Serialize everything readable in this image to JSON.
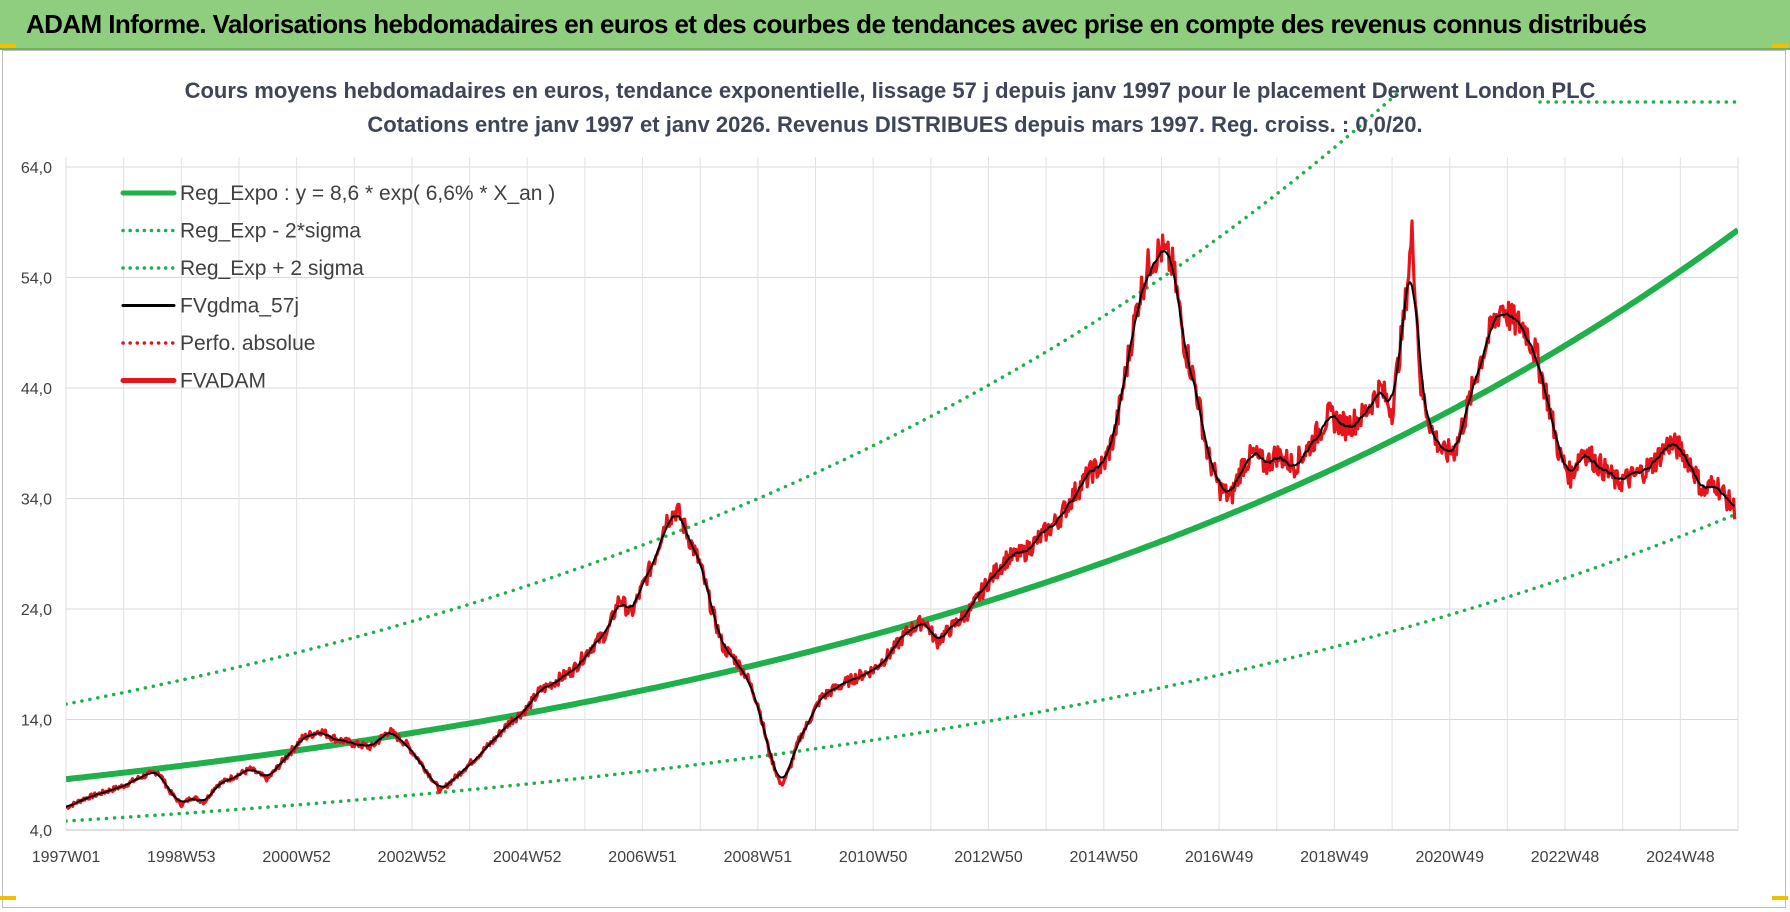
{
  "header": {
    "title": "ADAM Informe. Valorisations hebdomadaires en euros et des courbes de tendances avec prise en compte des revenus connus distribués"
  },
  "chart_data": {
    "type": "line",
    "title": [
      "Cours moyens hebdomadaires en euros, tendance exponentielle, lissage 57 j depuis janv 1997 pour le placement Derwent London PLC",
      "Cotations entre janv 1997 et janv 2026. Revenus DISTRIBUES depuis mars 1997.  Reg. croiss. : 0,0/20."
    ],
    "xlabel": "",
    "ylabel": "",
    "ylim": [
      4,
      64
    ],
    "xlim": [
      1997.0,
      2026.0
    ],
    "y_ticks": [
      "4,0",
      "14,0",
      "24,0",
      "34,0",
      "44,0",
      "54,0",
      "64,0"
    ],
    "y_tick_values": [
      4,
      14,
      24,
      34,
      44,
      54,
      64
    ],
    "x_ticks": [
      "1997W01",
      "1998W53",
      "2000W52",
      "2002W52",
      "2004W52",
      "2006W51",
      "2008W51",
      "2010W50",
      "2012W50",
      "2014W50",
      "2016W49",
      "2018W49",
      "2020W49",
      "2022W48",
      "2024W48"
    ],
    "x_tick_values": [
      1997.0,
      1999.0,
      2001.0,
      2003.0,
      2005.0,
      2007.0,
      2009.0,
      2011.0,
      2013.0,
      2015.0,
      2017.0,
      2019.0,
      2021.0,
      2023.0,
      2025.0
    ],
    "grid": true,
    "legend_position": "top-left",
    "regression": {
      "a": 8.6,
      "rate": 0.066,
      "sigma_factor_upper": 1.79,
      "sigma_factor_lower": 0.56
    },
    "series": [
      {
        "name": "Reg_Expo : y = 8,6 * exp( 6,6% *  X_an )",
        "color": "#1fb04b",
        "style": "solid-thick",
        "kind": "reg"
      },
      {
        "name": "Reg_Exp - 2*sigma",
        "color": "#1fb04b",
        "style": "dotted",
        "kind": "reg_low"
      },
      {
        "name": "Reg_Exp + 2 sigma",
        "color": "#1fb04b",
        "style": "dotted",
        "kind": "reg_high"
      },
      {
        "name": "FVgdma_57j",
        "color": "#000000",
        "style": "solid",
        "kind": "smooth"
      },
      {
        "name": "Perfo. absolue",
        "color": "#e8141c",
        "style": "dotted",
        "kind": "none"
      },
      {
        "name": "FVADAM",
        "color": "#e8141c",
        "style": "solid-thick",
        "kind": "price"
      }
    ],
    "price_points": [
      [
        1997.0,
        6.0
      ],
      [
        1997.3,
        6.8
      ],
      [
        1997.7,
        7.5
      ],
      [
        1998.0,
        8.0
      ],
      [
        1998.3,
        8.8
      ],
      [
        1998.6,
        9.3
      ],
      [
        1998.8,
        7.5
      ],
      [
        1999.0,
        6.3
      ],
      [
        1999.2,
        7.0
      ],
      [
        1999.4,
        6.5
      ],
      [
        1999.6,
        8.0
      ],
      [
        1999.9,
        8.8
      ],
      [
        2000.2,
        9.5
      ],
      [
        2000.5,
        8.6
      ],
      [
        2000.8,
        10.5
      ],
      [
        2001.1,
        12.3
      ],
      [
        2001.4,
        13.0
      ],
      [
        2001.7,
        12.2
      ],
      [
        2002.0,
        11.8
      ],
      [
        2002.3,
        11.5
      ],
      [
        2002.6,
        13.0
      ],
      [
        2002.9,
        11.8
      ],
      [
        2003.1,
        10.5
      ],
      [
        2003.3,
        9.0
      ],
      [
        2003.5,
        7.5
      ],
      [
        2003.8,
        9.0
      ],
      [
        2004.1,
        10.5
      ],
      [
        2004.4,
        12.0
      ],
      [
        2004.7,
        13.8
      ],
      [
        2005.0,
        15.0
      ],
      [
        2005.2,
        16.5
      ],
      [
        2005.5,
        17.5
      ],
      [
        2005.8,
        18.5
      ],
      [
        2006.1,
        20.5
      ],
      [
        2006.4,
        22.0
      ],
      [
        2006.6,
        25.0
      ],
      [
        2006.8,
        23.5
      ],
      [
        2007.0,
        26.0
      ],
      [
        2007.2,
        28.5
      ],
      [
        2007.4,
        32.0
      ],
      [
        2007.6,
        33.0
      ],
      [
        2007.8,
        30.5
      ],
      [
        2008.0,
        28.0
      ],
      [
        2008.2,
        24.0
      ],
      [
        2008.4,
        20.5
      ],
      [
        2008.6,
        19.5
      ],
      [
        2008.8,
        18.0
      ],
      [
        2009.0,
        15.5
      ],
      [
        2009.2,
        11.0
      ],
      [
        2009.4,
        8.0
      ],
      [
        2009.55,
        9.5
      ],
      [
        2009.7,
        12.0
      ],
      [
        2009.9,
        14.0
      ],
      [
        2010.1,
        16.0
      ],
      [
        2010.4,
        17.0
      ],
      [
        2010.7,
        17.8
      ],
      [
        2011.0,
        18.5
      ],
      [
        2011.3,
        20.0
      ],
      [
        2011.6,
        22.0
      ],
      [
        2011.9,
        23.0
      ],
      [
        2012.1,
        21.0
      ],
      [
        2012.4,
        22.5
      ],
      [
        2012.7,
        24.0
      ],
      [
        2013.0,
        26.5
      ],
      [
        2013.3,
        28.5
      ],
      [
        2013.6,
        29.0
      ],
      [
        2013.9,
        30.5
      ],
      [
        2014.2,
        32.0
      ],
      [
        2014.5,
        34.5
      ],
      [
        2014.8,
        36.5
      ],
      [
        2015.0,
        37.0
      ],
      [
        2015.2,
        40.0
      ],
      [
        2015.4,
        46.0
      ],
      [
        2015.6,
        52.0
      ],
      [
        2015.8,
        55.5
      ],
      [
        2016.0,
        56.5
      ],
      [
        2016.2,
        55.0
      ],
      [
        2016.4,
        48.0
      ],
      [
        2016.6,
        44.0
      ],
      [
        2016.8,
        38.0
      ],
      [
        2017.0,
        35.0
      ],
      [
        2017.2,
        34.0
      ],
      [
        2017.4,
        37.0
      ],
      [
        2017.6,
        38.0
      ],
      [
        2017.8,
        37.0
      ],
      [
        2018.0,
        38.0
      ],
      [
        2018.3,
        37.0
      ],
      [
        2018.6,
        39.0
      ],
      [
        2018.9,
        41.5
      ],
      [
        2019.2,
        40.5
      ],
      [
        2019.5,
        41.5
      ],
      [
        2019.8,
        44.0
      ],
      [
        2020.0,
        42.0
      ],
      [
        2020.2,
        50.0
      ],
      [
        2020.35,
        58.0
      ],
      [
        2020.5,
        44.0
      ],
      [
        2020.7,
        40.0
      ],
      [
        2020.9,
        38.0
      ],
      [
        2021.1,
        38.5
      ],
      [
        2021.3,
        42.0
      ],
      [
        2021.5,
        46.0
      ],
      [
        2021.7,
        49.0
      ],
      [
        2021.9,
        51.5
      ],
      [
        2022.1,
        50.0
      ],
      [
        2022.3,
        49.5
      ],
      [
        2022.5,
        47.0
      ],
      [
        2022.7,
        43.0
      ],
      [
        2022.9,
        38.0
      ],
      [
        2023.1,
        36.0
      ],
      [
        2023.3,
        38.5
      ],
      [
        2023.6,
        37.0
      ],
      [
        2023.9,
        35.5
      ],
      [
        2024.2,
        36.0
      ],
      [
        2024.5,
        37.0
      ],
      [
        2024.8,
        39.0
      ],
      [
        2025.0,
        38.5
      ],
      [
        2025.2,
        37.0
      ],
      [
        2025.4,
        34.5
      ],
      [
        2025.6,
        35.5
      ],
      [
        2025.8,
        34.0
      ],
      [
        2025.95,
        33.0
      ]
    ]
  }
}
